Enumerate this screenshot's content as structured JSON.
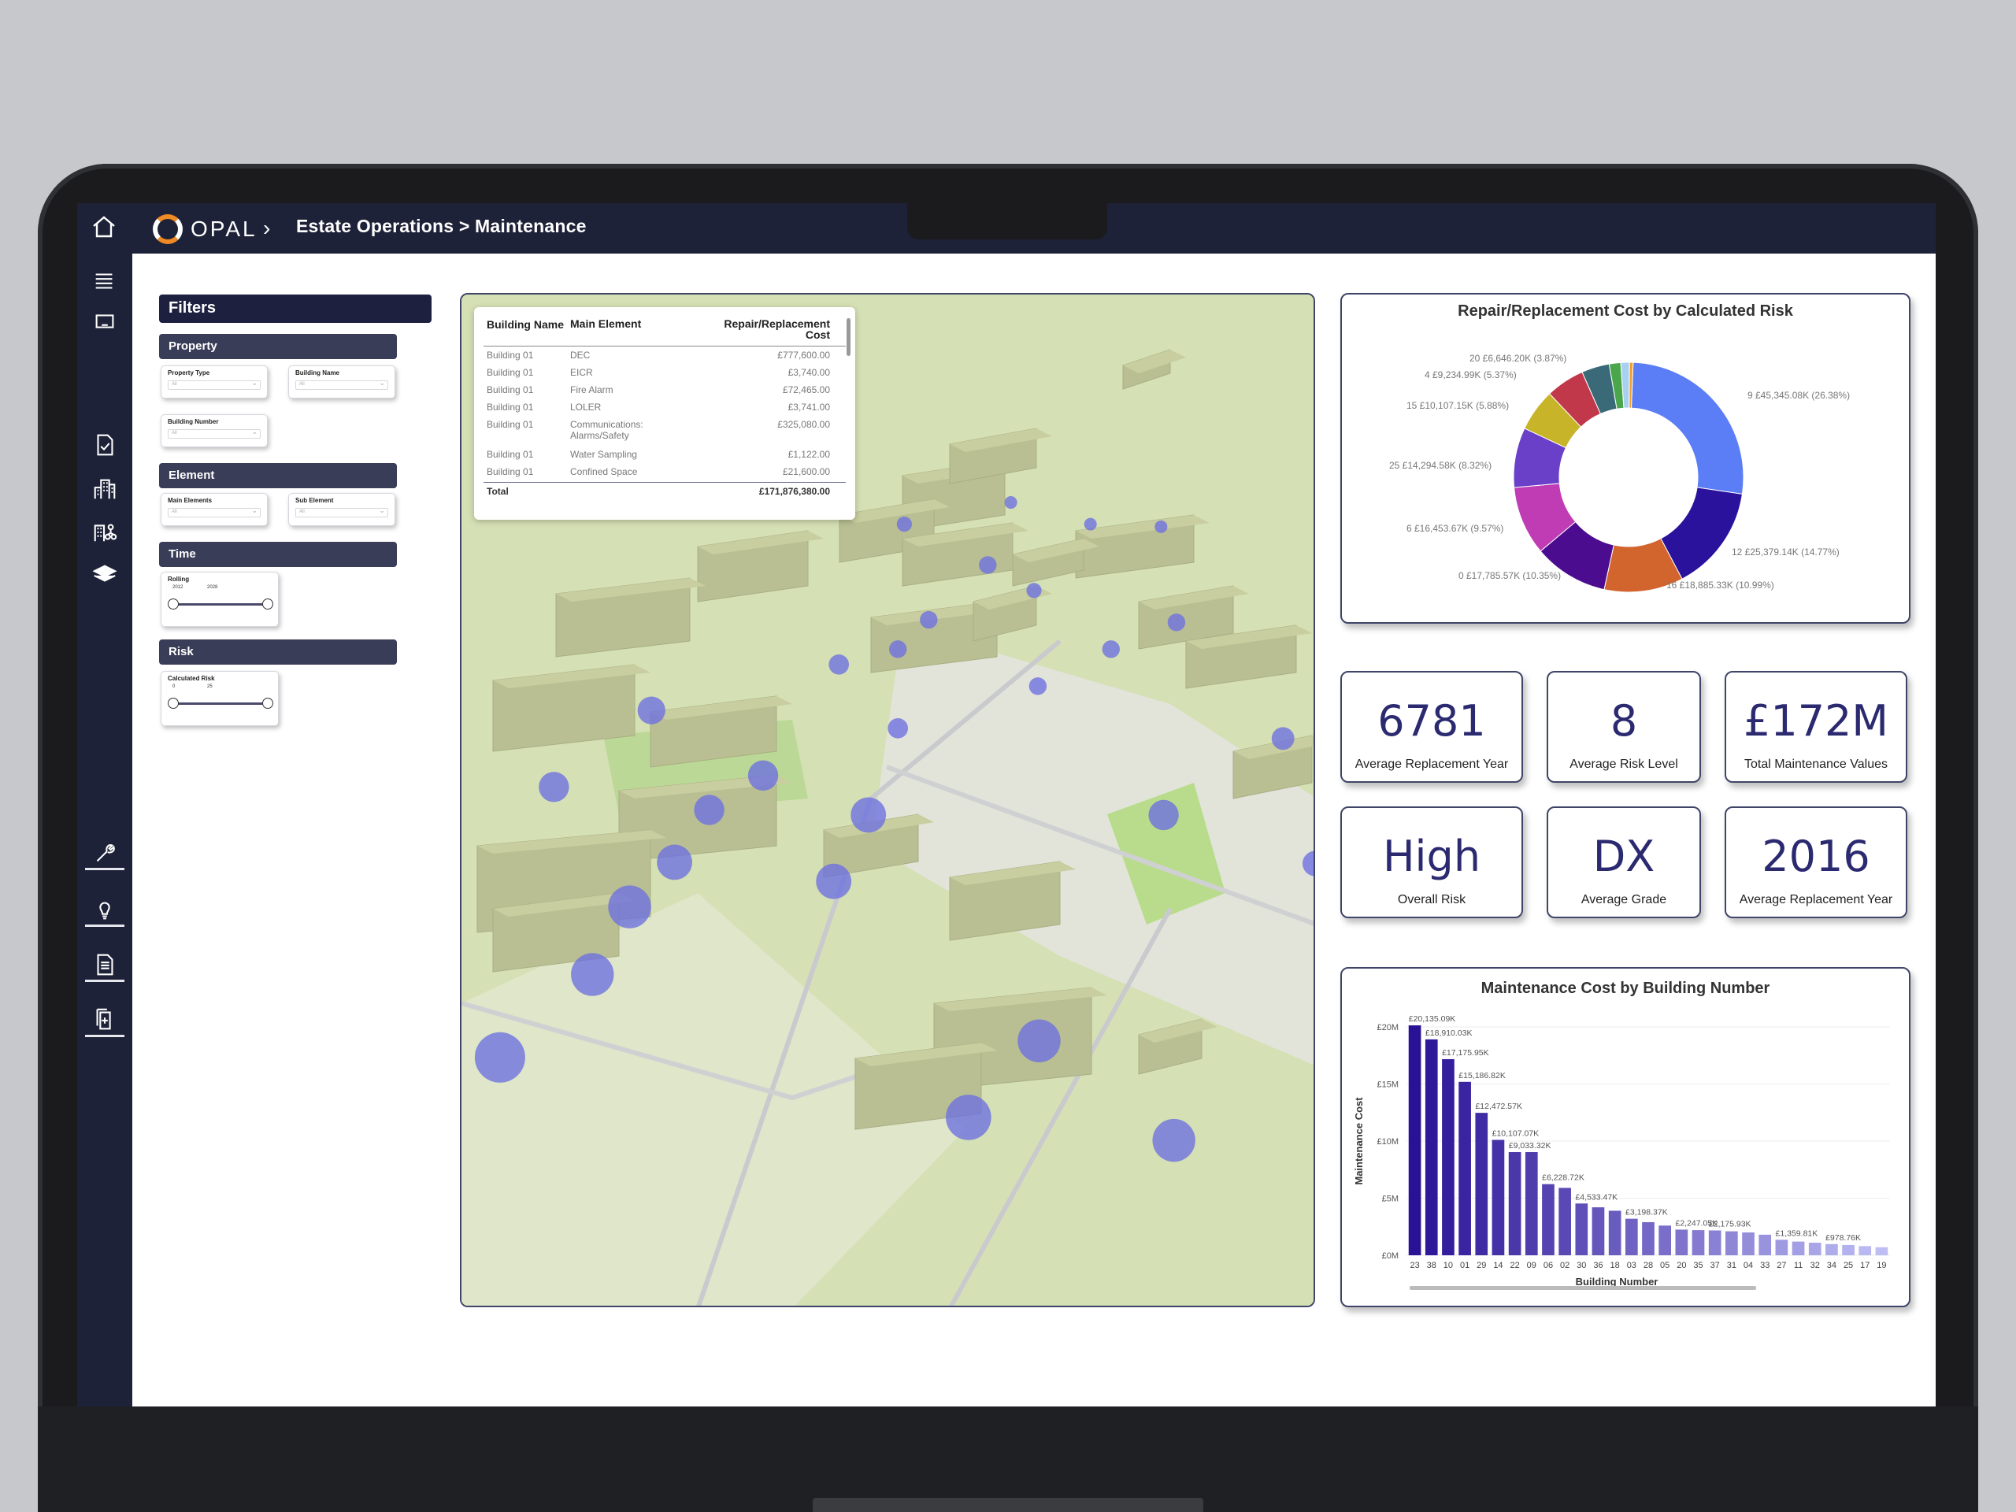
{
  "header": {
    "logo_text": "OPAL",
    "breadcrumb": "Estate Operations > Maintenance",
    "chevron": "›"
  },
  "sidebar_icons": [
    "home-icon",
    "menu-icon",
    "tablet-icon",
    "document-check-icon",
    "buildings-icon",
    "building-network-icon",
    "layers-icon",
    "wrench-icon",
    "lightbulb-icon",
    "report-icon",
    "add-document-icon"
  ],
  "filters": {
    "title": "Filters",
    "property": {
      "title": "Property",
      "property_type": "Property Type",
      "building_name": "Building Name",
      "building_number": "Building Number",
      "all": "All"
    },
    "element": {
      "title": "Element",
      "main_elements": "Main Elements",
      "sub_element": "Sub Element",
      "all": "All"
    },
    "time": {
      "title": "Time",
      "label": "Rolling",
      "min": "2012",
      "max": "2028"
    },
    "risk": {
      "title": "Risk",
      "label": "Calculated Risk",
      "min": "0",
      "max": "25"
    }
  },
  "table": {
    "headers": [
      "Building Name",
      "Main Element",
      "Repair/Replacement Cost"
    ],
    "rows": [
      [
        "Building 01",
        "DEC",
        "£777,600.00"
      ],
      [
        "Building 01",
        "EICR",
        "£3,740.00"
      ],
      [
        "Building 01",
        "Fire Alarm",
        "£72,465.00"
      ],
      [
        "Building 01",
        "LOLER",
        "£3,741.00"
      ],
      [
        "Building 01",
        "Communications: Alarms/Safety",
        "£325,080.00"
      ],
      [
        "Building 01",
        "Water Sampling",
        "£1,122.00"
      ],
      [
        "Building 01",
        "Confined Space",
        "£21,600.00"
      ]
    ],
    "total_label": "Total",
    "total_value": "£171,876,380.00"
  },
  "donut": {
    "title": "Repair/Replacement Cost by Calculated Risk",
    "colors": {
      "risk9": "#5b7df5",
      "risk12": "#2a129c",
      "risk16": "#d2642e",
      "risk0": "#4c0c90",
      "risk6": "#c03cb4",
      "risk25": "#6b40c8",
      "risk15": "#c8b428",
      "risk4": "#c0384a",
      "risk20": "#3a6a78",
      "g1": "#4aa64a",
      "g2": "#a8d0f0",
      "g3": "#f0a030"
    }
  },
  "kpis": [
    {
      "value": "6781",
      "label": "Average Replacement Year"
    },
    {
      "value": "8",
      "label": "Average Risk Level"
    },
    {
      "value": "£172M",
      "label": "Total Maintenance Values"
    },
    {
      "value": "High",
      "label": "Overall Risk"
    },
    {
      "value": "DX",
      "label": "Average Grade"
    },
    {
      "value": "2016",
      "label": "Average Replacement Year"
    }
  ],
  "chart_data": [
    {
      "type": "pie",
      "title": "Repair/Replacement Cost by Calculated Risk",
      "slices": [
        {
          "label": "9 £45,345.08K (26.38%)",
          "value": 26.38
        },
        {
          "label": "12 £25,379.14K (14.77%)",
          "value": 14.77
        },
        {
          "label": "16 £18,885.33K (10.99%)",
          "value": 10.99
        },
        {
          "label": "0 £17,785.57K (10.35%)",
          "value": 10.35
        },
        {
          "label": "6 £16,453.67K (9.57%)",
          "value": 9.57
        },
        {
          "label": "25 £14,294.58K (8.32%)",
          "value": 8.32
        },
        {
          "label": "15 £10,107.15K (5.88%)",
          "value": 5.88
        },
        {
          "label": "4 £9,234.99K (5.37%)",
          "value": 5.37
        },
        {
          "label": "20 £6,646.20K (3.87%)",
          "value": 3.87
        },
        {
          "label": "",
          "value": 1.6
        },
        {
          "label": "",
          "value": 1.2
        },
        {
          "label": "",
          "value": 0.5
        }
      ]
    },
    {
      "type": "bar",
      "title": "Maintenance Cost by Building Number",
      "xlabel": "Building Number",
      "ylabel": "Maintenance Cost",
      "ylim": [
        0,
        20
      ],
      "yticks": [
        "£0M",
        "£5M",
        "£10M",
        "£15M",
        "£20M"
      ],
      "categories": [
        "23",
        "38",
        "10",
        "01",
        "29",
        "14",
        "22",
        "09",
        "06",
        "02",
        "30",
        "36",
        "18",
        "03",
        "28",
        "05",
        "20",
        "35",
        "37",
        "31",
        "04",
        "33",
        "27",
        "11",
        "32",
        "34",
        "25",
        "17",
        "19"
      ],
      "values": [
        20.135,
        18.91,
        17.176,
        15.187,
        12.473,
        10.107,
        9.033,
        9.033,
        6.229,
        5.9,
        4.534,
        4.2,
        3.9,
        3.198,
        2.9,
        2.6,
        2.247,
        2.2,
        2.175,
        2.1,
        2.0,
        1.8,
        1.36,
        1.2,
        1.1,
        0.979,
        0.9,
        0.8,
        0.7
      ],
      "data_labels": [
        "£20,135.09K",
        "£18,910.03K",
        "£17,175.95K",
        "£15,186.82K",
        "£12,472.57K",
        "£10,107.07K",
        "£9,033.32K",
        "",
        "£6,228.72K",
        "",
        "£4,533.47K",
        "",
        "",
        "£3,198.37K",
        "",
        "",
        "£2,247.05K",
        "",
        "£2,175.93K",
        "",
        "",
        "",
        "£1,359.81K",
        "",
        "",
        "£978.76K",
        "",
        "",
        ""
      ]
    }
  ],
  "map_markers": [
    {
      "x": 345,
      "y": 180,
      "r": 6
    },
    {
      "x": 428,
      "y": 163,
      "r": 5
    },
    {
      "x": 490,
      "y": 180,
      "r": 5
    },
    {
      "x": 545,
      "y": 182,
      "r": 5
    },
    {
      "x": 410,
      "y": 212,
      "r": 7
    },
    {
      "x": 446,
      "y": 232,
      "r": 6
    },
    {
      "x": 364,
      "y": 255,
      "r": 7
    },
    {
      "x": 340,
      "y": 278,
      "r": 7
    },
    {
      "x": 294,
      "y": 290,
      "r": 8
    },
    {
      "x": 506,
      "y": 278,
      "r": 7
    },
    {
      "x": 557,
      "y": 257,
      "r": 7
    },
    {
      "x": 449,
      "y": 307,
      "r": 7
    },
    {
      "x": 340,
      "y": 340,
      "r": 8
    },
    {
      "x": 640,
      "y": 348,
      "r": 9
    },
    {
      "x": 148,
      "y": 326,
      "r": 11
    },
    {
      "x": 235,
      "y": 377,
      "r": 12
    },
    {
      "x": 72,
      "y": 386,
      "r": 12
    },
    {
      "x": 193,
      "y": 404,
      "r": 12
    },
    {
      "x": 317,
      "y": 408,
      "r": 14
    },
    {
      "x": 547,
      "y": 408,
      "r": 12
    },
    {
      "x": 166,
      "y": 445,
      "r": 14
    },
    {
      "x": 290,
      "y": 460,
      "r": 14
    },
    {
      "x": 131,
      "y": 480,
      "r": 17
    },
    {
      "x": 102,
      "y": 533,
      "r": 17
    },
    {
      "x": 450,
      "y": 585,
      "r": 17
    },
    {
      "x": 30,
      "y": 598,
      "r": 20
    },
    {
      "x": 395,
      "y": 645,
      "r": 18
    },
    {
      "x": 555,
      "y": 663,
      "r": 17
    },
    {
      "x": 665,
      "y": 446,
      "r": 10
    }
  ]
}
